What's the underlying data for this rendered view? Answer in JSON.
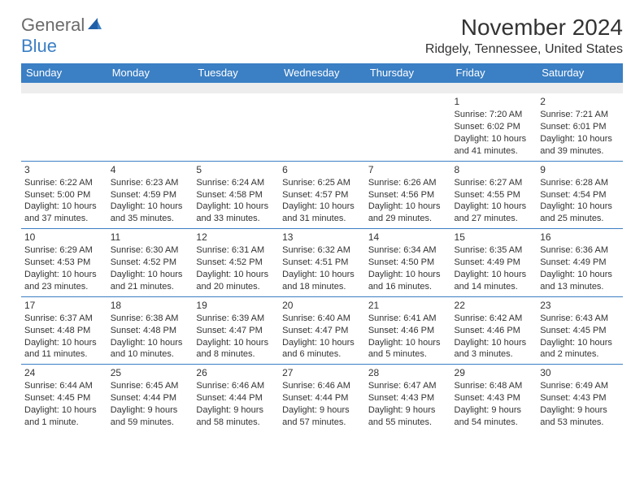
{
  "logo": {
    "word1": "General",
    "word2": "Blue"
  },
  "title": "November 2024",
  "location": "Ridgely, Tennessee, United States",
  "colors": {
    "header_bg": "#3b7fc4",
    "header_text": "#ffffff",
    "rule": "#3b7fc4",
    "text": "#333333",
    "logo_gray": "#6b6b6b",
    "logo_blue": "#3b7fc4",
    "blank_row_bg": "#ededed"
  },
  "typography": {
    "title_fontsize": 28,
    "location_fontsize": 16,
    "th_fontsize": 13,
    "cell_fontsize": 11,
    "daynum_fontsize": 12,
    "logo_fontsize": 22
  },
  "days_of_week": [
    "Sunday",
    "Monday",
    "Tuesday",
    "Wednesday",
    "Thursday",
    "Friday",
    "Saturday"
  ],
  "weeks": [
    [
      null,
      null,
      null,
      null,
      null,
      {
        "n": "1",
        "sr": "Sunrise: 7:20 AM",
        "ss": "Sunset: 6:02 PM",
        "d1": "Daylight: 10 hours",
        "d2": "and 41 minutes."
      },
      {
        "n": "2",
        "sr": "Sunrise: 7:21 AM",
        "ss": "Sunset: 6:01 PM",
        "d1": "Daylight: 10 hours",
        "d2": "and 39 minutes."
      }
    ],
    [
      {
        "n": "3",
        "sr": "Sunrise: 6:22 AM",
        "ss": "Sunset: 5:00 PM",
        "d1": "Daylight: 10 hours",
        "d2": "and 37 minutes."
      },
      {
        "n": "4",
        "sr": "Sunrise: 6:23 AM",
        "ss": "Sunset: 4:59 PM",
        "d1": "Daylight: 10 hours",
        "d2": "and 35 minutes."
      },
      {
        "n": "5",
        "sr": "Sunrise: 6:24 AM",
        "ss": "Sunset: 4:58 PM",
        "d1": "Daylight: 10 hours",
        "d2": "and 33 minutes."
      },
      {
        "n": "6",
        "sr": "Sunrise: 6:25 AM",
        "ss": "Sunset: 4:57 PM",
        "d1": "Daylight: 10 hours",
        "d2": "and 31 minutes."
      },
      {
        "n": "7",
        "sr": "Sunrise: 6:26 AM",
        "ss": "Sunset: 4:56 PM",
        "d1": "Daylight: 10 hours",
        "d2": "and 29 minutes."
      },
      {
        "n": "8",
        "sr": "Sunrise: 6:27 AM",
        "ss": "Sunset: 4:55 PM",
        "d1": "Daylight: 10 hours",
        "d2": "and 27 minutes."
      },
      {
        "n": "9",
        "sr": "Sunrise: 6:28 AM",
        "ss": "Sunset: 4:54 PM",
        "d1": "Daylight: 10 hours",
        "d2": "and 25 minutes."
      }
    ],
    [
      {
        "n": "10",
        "sr": "Sunrise: 6:29 AM",
        "ss": "Sunset: 4:53 PM",
        "d1": "Daylight: 10 hours",
        "d2": "and 23 minutes."
      },
      {
        "n": "11",
        "sr": "Sunrise: 6:30 AM",
        "ss": "Sunset: 4:52 PM",
        "d1": "Daylight: 10 hours",
        "d2": "and 21 minutes."
      },
      {
        "n": "12",
        "sr": "Sunrise: 6:31 AM",
        "ss": "Sunset: 4:52 PM",
        "d1": "Daylight: 10 hours",
        "d2": "and 20 minutes."
      },
      {
        "n": "13",
        "sr": "Sunrise: 6:32 AM",
        "ss": "Sunset: 4:51 PM",
        "d1": "Daylight: 10 hours",
        "d2": "and 18 minutes."
      },
      {
        "n": "14",
        "sr": "Sunrise: 6:34 AM",
        "ss": "Sunset: 4:50 PM",
        "d1": "Daylight: 10 hours",
        "d2": "and 16 minutes."
      },
      {
        "n": "15",
        "sr": "Sunrise: 6:35 AM",
        "ss": "Sunset: 4:49 PM",
        "d1": "Daylight: 10 hours",
        "d2": "and 14 minutes."
      },
      {
        "n": "16",
        "sr": "Sunrise: 6:36 AM",
        "ss": "Sunset: 4:49 PM",
        "d1": "Daylight: 10 hours",
        "d2": "and 13 minutes."
      }
    ],
    [
      {
        "n": "17",
        "sr": "Sunrise: 6:37 AM",
        "ss": "Sunset: 4:48 PM",
        "d1": "Daylight: 10 hours",
        "d2": "and 11 minutes."
      },
      {
        "n": "18",
        "sr": "Sunrise: 6:38 AM",
        "ss": "Sunset: 4:48 PM",
        "d1": "Daylight: 10 hours",
        "d2": "and 10 minutes."
      },
      {
        "n": "19",
        "sr": "Sunrise: 6:39 AM",
        "ss": "Sunset: 4:47 PM",
        "d1": "Daylight: 10 hours",
        "d2": "and 8 minutes."
      },
      {
        "n": "20",
        "sr": "Sunrise: 6:40 AM",
        "ss": "Sunset: 4:47 PM",
        "d1": "Daylight: 10 hours",
        "d2": "and 6 minutes."
      },
      {
        "n": "21",
        "sr": "Sunrise: 6:41 AM",
        "ss": "Sunset: 4:46 PM",
        "d1": "Daylight: 10 hours",
        "d2": "and 5 minutes."
      },
      {
        "n": "22",
        "sr": "Sunrise: 6:42 AM",
        "ss": "Sunset: 4:46 PM",
        "d1": "Daylight: 10 hours",
        "d2": "and 3 minutes."
      },
      {
        "n": "23",
        "sr": "Sunrise: 6:43 AM",
        "ss": "Sunset: 4:45 PM",
        "d1": "Daylight: 10 hours",
        "d2": "and 2 minutes."
      }
    ],
    [
      {
        "n": "24",
        "sr": "Sunrise: 6:44 AM",
        "ss": "Sunset: 4:45 PM",
        "d1": "Daylight: 10 hours",
        "d2": "and 1 minute."
      },
      {
        "n": "25",
        "sr": "Sunrise: 6:45 AM",
        "ss": "Sunset: 4:44 PM",
        "d1": "Daylight: 9 hours",
        "d2": "and 59 minutes."
      },
      {
        "n": "26",
        "sr": "Sunrise: 6:46 AM",
        "ss": "Sunset: 4:44 PM",
        "d1": "Daylight: 9 hours",
        "d2": "and 58 minutes."
      },
      {
        "n": "27",
        "sr": "Sunrise: 6:46 AM",
        "ss": "Sunset: 4:44 PM",
        "d1": "Daylight: 9 hours",
        "d2": "and 57 minutes."
      },
      {
        "n": "28",
        "sr": "Sunrise: 6:47 AM",
        "ss": "Sunset: 4:43 PM",
        "d1": "Daylight: 9 hours",
        "d2": "and 55 minutes."
      },
      {
        "n": "29",
        "sr": "Sunrise: 6:48 AM",
        "ss": "Sunset: 4:43 PM",
        "d1": "Daylight: 9 hours",
        "d2": "and 54 minutes."
      },
      {
        "n": "30",
        "sr": "Sunrise: 6:49 AM",
        "ss": "Sunset: 4:43 PM",
        "d1": "Daylight: 9 hours",
        "d2": "and 53 minutes."
      }
    ]
  ]
}
